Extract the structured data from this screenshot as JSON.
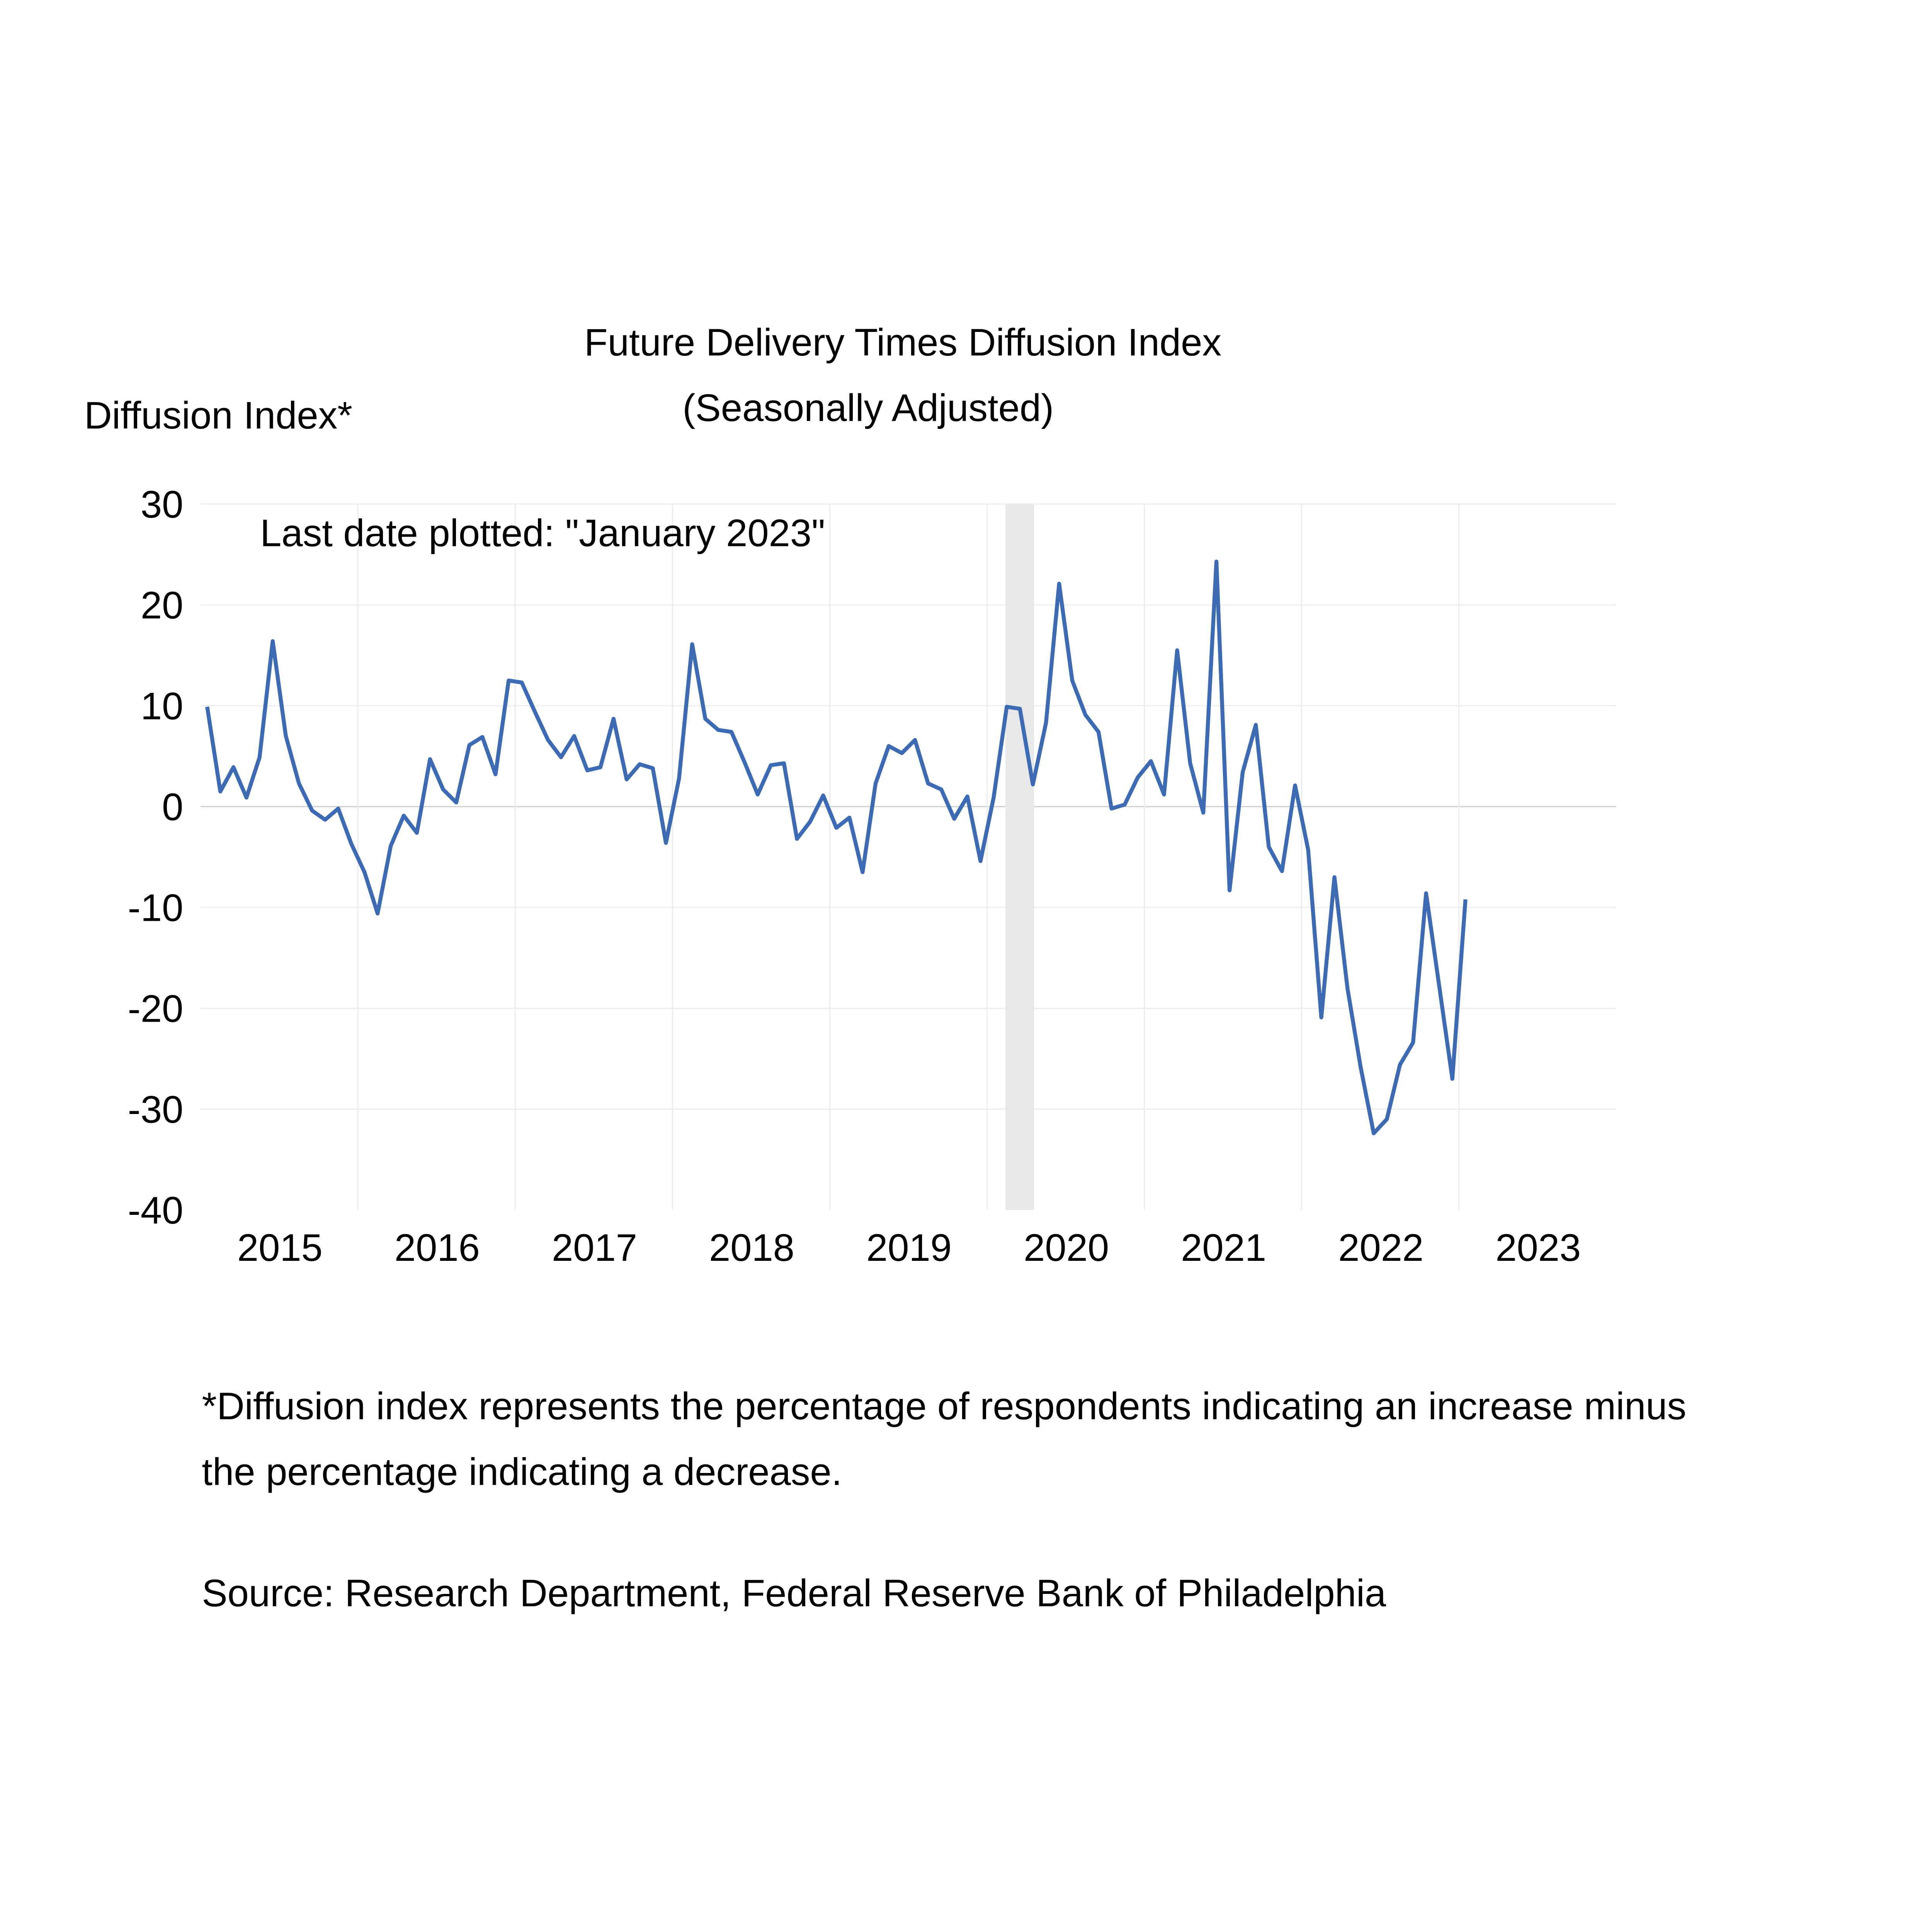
{
  "chart_data": {
    "type": "line",
    "title": "Future Delivery Times Diffusion Index",
    "subtitle": "(Seasonally Adjusted)",
    "ylabel": "Diffusion Index*",
    "xlabel": "",
    "annotation": "Last date plotted: \"January 2023\"",
    "ylim": [
      -40,
      30
    ],
    "yticks": [
      "30",
      "20",
      "10",
      "0",
      "-10",
      "-20",
      "-30",
      "-40"
    ],
    "ytick_values": [
      30,
      20,
      10,
      0,
      -10,
      -20,
      -30,
      -40
    ],
    "xticks": [
      "2015",
      "2016",
      "2017",
      "2018",
      "2019",
      "2020",
      "2021",
      "2022",
      "2023"
    ],
    "grid": true,
    "line_color": "#3d6bb3",
    "recession_color": "#e8e8e8",
    "recession": {
      "start": "2020-02",
      "end": "2020-04"
    },
    "start": "2015-01",
    "series": [
      {
        "name": "Future Delivery Times",
        "values": [
          9.9,
          1.5,
          3.9,
          0.9,
          4.9,
          16.4,
          7.0,
          2.3,
          -0.4,
          -1.3,
          -0.2,
          -3.7,
          -6.5,
          -10.6,
          -3.9,
          -0.9,
          -2.6,
          4.7,
          1.7,
          0.4,
          6.1,
          6.9,
          3.2,
          12.5,
          12.3,
          9.4,
          6.6,
          4.9,
          7.0,
          3.6,
          3.9,
          8.7,
          2.7,
          4.2,
          3.8,
          -3.6,
          2.8,
          16.1,
          8.7,
          7.6,
          7.4,
          4.4,
          1.2,
          4.1,
          4.3,
          -3.2,
          -1.5,
          1.1,
          -2.1,
          -1.1,
          -6.5,
          2.3,
          6.0,
          5.3,
          6.6,
          2.3,
          1.7,
          -1.2,
          1.0,
          -5.4,
          0.9,
          9.9,
          9.7,
          2.2,
          8.3,
          22.1,
          12.5,
          9.1,
          7.4,
          -0.2,
          0.2,
          2.9,
          4.5,
          1.2,
          15.5,
          4.3,
          -0.6,
          24.3,
          -8.3,
          3.4,
          8.1,
          -4.0,
          -6.4,
          2.1,
          -4.3,
          -20.9,
          -7.0,
          -18.0,
          -25.8,
          -32.4,
          -31.0,
          -25.6,
          -23.4,
          -8.6,
          -17.8,
          -27.0,
          -9.2
        ]
      }
    ]
  },
  "footnote_line1": "*Diffusion index represents the percentage of respondents indicating an increase minus",
  "footnote_line2": "the percentage indicating a decrease.",
  "source": "Source: Research Department, Federal Reserve Bank of Philadelphia"
}
